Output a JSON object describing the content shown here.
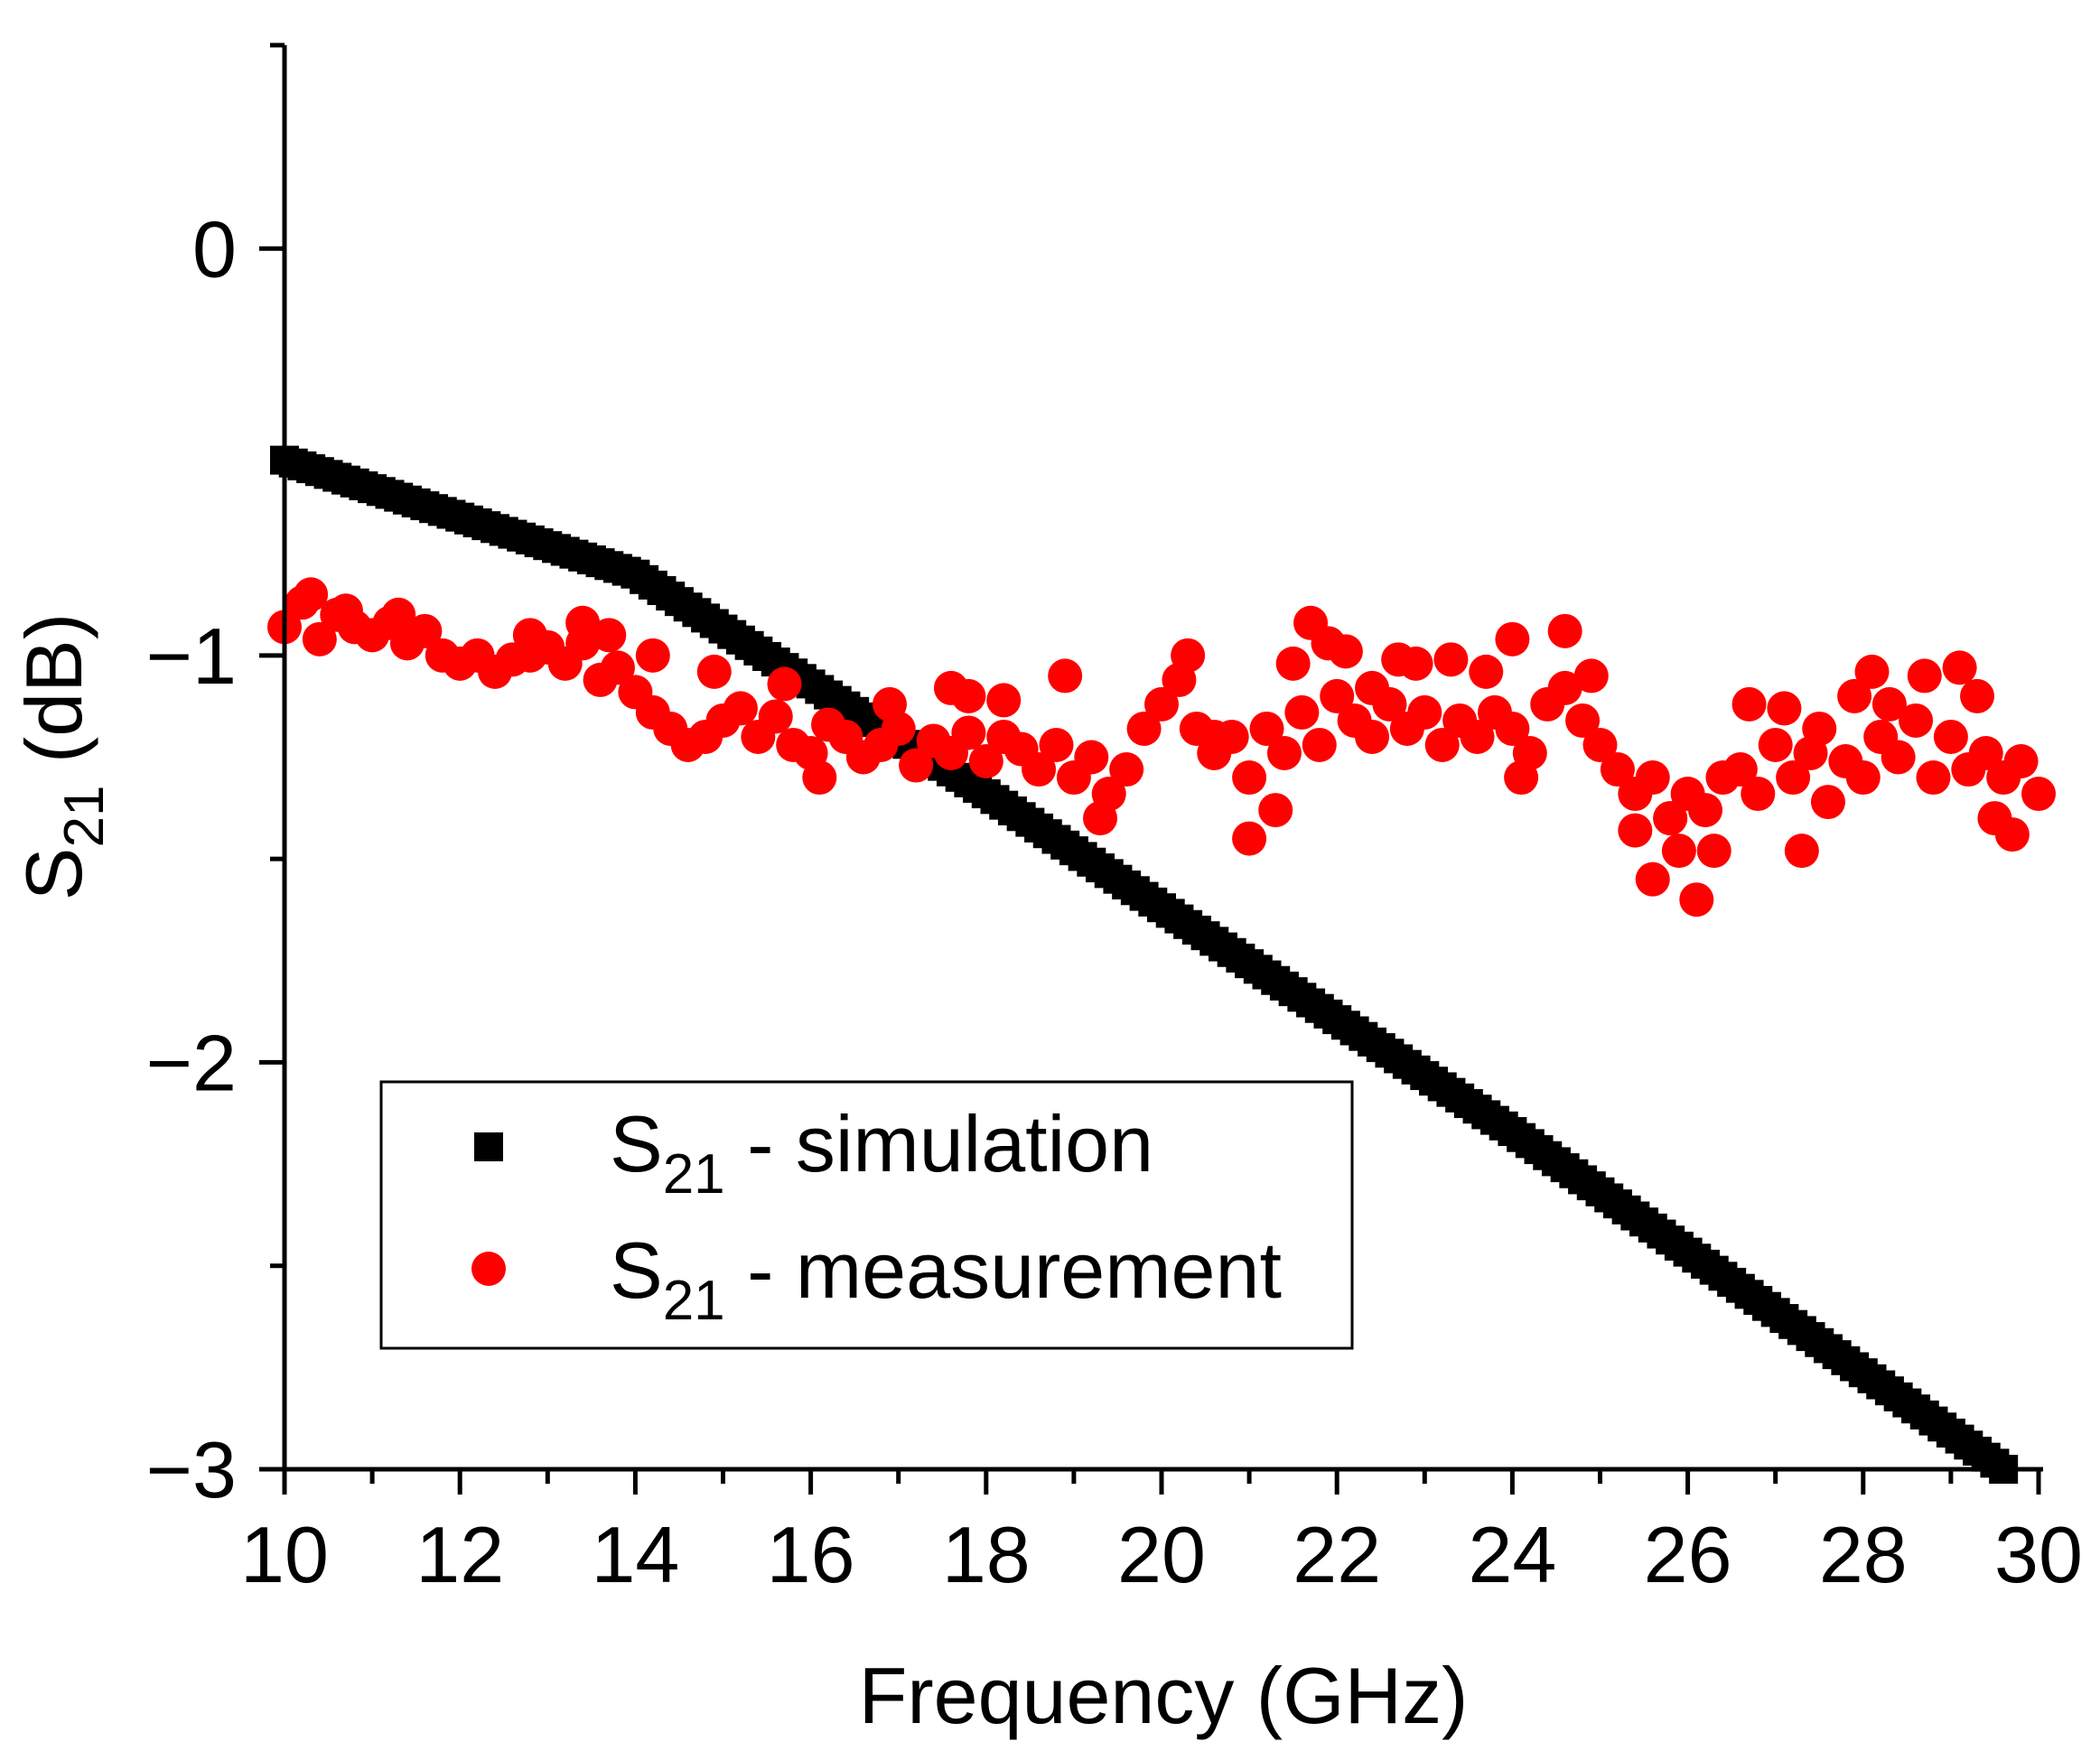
{
  "chart_data": {
    "type": "scatter",
    "xlabel": "Frequency (GHz)",
    "ylabel_main": "S",
    "ylabel_sub": "21",
    "ylabel_unit": " (dB)",
    "xlim": [
      10,
      30
    ],
    "ylim": [
      -3,
      0.5
    ],
    "xticks": [
      10,
      12,
      14,
      16,
      18,
      20,
      22,
      24,
      26,
      28,
      30
    ],
    "yticks": [
      0,
      -1,
      -2,
      -3
    ],
    "ytick_labels": [
      "0",
      "−1",
      "−2",
      "−3"
    ],
    "grid": false,
    "legend_position": "bottom-left",
    "series": [
      {
        "name_main": "S",
        "name_sub": "21",
        "name_rest": " - simulation",
        "marker": "square",
        "color": "#000000",
        "model": "simulation",
        "x_range": [
          10,
          29.6
        ],
        "x_step": 0.1,
        "anchors_x": [
          10,
          14,
          18,
          20,
          24,
          29.6
        ],
        "anchors_y": [
          -0.52,
          -0.8,
          -1.34,
          -1.62,
          -2.17,
          -3.0
        ]
      },
      {
        "name_main": "S",
        "name_sub": "21",
        "name_rest": " - measurement",
        "marker": "circle",
        "color": "#ff0000",
        "x": [
          10.0,
          10.2,
          10.4,
          10.6,
          10.8,
          11.0,
          11.2,
          11.4,
          11.6,
          11.8,
          12.0,
          12.2,
          12.4,
          12.6,
          12.8,
          13.0,
          13.2,
          13.4,
          13.6,
          13.8,
          14.0,
          14.2,
          14.4,
          14.6,
          14.8,
          15.0,
          15.2,
          15.4,
          15.6,
          15.8,
          16.0,
          16.2,
          16.4,
          16.6,
          16.8,
          17.0,
          17.2,
          17.4,
          17.6,
          17.8,
          18.0,
          18.2,
          18.4,
          18.6,
          18.8,
          19.0,
          19.2,
          19.4,
          19.6,
          19.8,
          20.0,
          20.2,
          20.4,
          20.6,
          20.8,
          21.0,
          21.2,
          21.4,
          21.6,
          21.8,
          22.0,
          22.2,
          22.4,
          22.6,
          22.8,
          23.0,
          23.2,
          23.4,
          23.6,
          23.8,
          24.0,
          24.2,
          24.4,
          24.6,
          24.8,
          25.0,
          25.2,
          25.4,
          25.6,
          25.8,
          26.0,
          26.2,
          26.4,
          26.6,
          26.8,
          27.0,
          27.2,
          27.4,
          27.6,
          27.8,
          28.0,
          28.2,
          28.4,
          28.6,
          28.8,
          29.0,
          29.2,
          29.4,
          29.6,
          29.8,
          30.0
        ],
        "y": [
          -0.93,
          -0.87,
          -0.96,
          -0.9,
          -0.93,
          -0.95,
          -0.92,
          -0.97,
          -0.94,
          -1.0,
          -1.02,
          -1.0,
          -1.04,
          -1.01,
          -1.0,
          -0.98,
          -1.02,
          -0.97,
          -1.06,
          -1.03,
          -1.09,
          -1.14,
          -1.18,
          -1.22,
          -1.2,
          -1.16,
          -1.13,
          -1.2,
          -1.15,
          -1.22,
          -1.24,
          -1.17,
          -1.2,
          -1.25,
          -1.22,
          -1.18,
          -1.27,
          -1.21,
          -1.24,
          -1.19,
          -1.26,
          -1.2,
          -1.23,
          -1.28,
          -1.22,
          -1.3,
          -1.25,
          -1.34,
          -1.28,
          -1.18,
          -1.12,
          -1.06,
          -1.18,
          -1.24,
          -1.2,
          -1.3,
          -1.18,
          -1.24,
          -1.14,
          -1.22,
          -1.1,
          -1.16,
          -1.2,
          -1.12,
          -1.18,
          -1.14,
          -1.22,
          -1.16,
          -1.2,
          -1.14,
          -1.18,
          -1.24,
          -1.12,
          -1.08,
          -1.16,
          -1.22,
          -1.28,
          -1.34,
          -1.3,
          -1.4,
          -1.34,
          -1.38,
          -1.3,
          -1.28,
          -1.34,
          -1.22,
          -1.3,
          -1.24,
          -1.36,
          -1.26,
          -1.3,
          -1.2,
          -1.25,
          -1.16,
          -1.3,
          -1.2,
          -1.28,
          -1.24,
          -1.3,
          -1.26,
          -1.34
        ],
        "extra_x": [
          10.3,
          10.7,
          11.3,
          12.8,
          13.4,
          13.7,
          14.2,
          14.9,
          15.7,
          16.1,
          16.9,
          17.6,
          17.8,
          18.2,
          18.9,
          19.3,
          20.3,
          20.6,
          21.0,
          21.3,
          21.5,
          21.7,
          21.9,
          22.1,
          22.4,
          22.7,
          22.9,
          23.3,
          23.7,
          24.0,
          24.1,
          24.6,
          24.9,
          25.4,
          25.6,
          25.8,
          25.9,
          26.1,
          26.3,
          26.7,
          27.1,
          27.3,
          27.5,
          27.9,
          28.1,
          28.3,
          28.7,
          29.1,
          29.3,
          29.5,
          29.7
        ],
        "extra_y": [
          -0.85,
          -0.89,
          -0.9,
          -0.95,
          -0.92,
          -0.95,
          -1.0,
          -1.04,
          -1.07,
          -1.3,
          -1.12,
          -1.08,
          -1.1,
          -1.11,
          -1.05,
          -1.4,
          -1.0,
          -1.2,
          -1.45,
          -1.38,
          -1.02,
          -0.92,
          -0.97,
          -0.99,
          -1.08,
          -1.01,
          -1.02,
          -1.01,
          -1.04,
          -0.96,
          -1.3,
          -0.94,
          -1.05,
          -1.43,
          -1.55,
          -1.4,
          -1.48,
          -1.6,
          -1.48,
          -1.12,
          -1.13,
          -1.48,
          -1.18,
          -1.1,
          -1.04,
          -1.12,
          -1.05,
          -1.03,
          -1.1,
          -1.4,
          -1.44
        ]
      }
    ]
  }
}
